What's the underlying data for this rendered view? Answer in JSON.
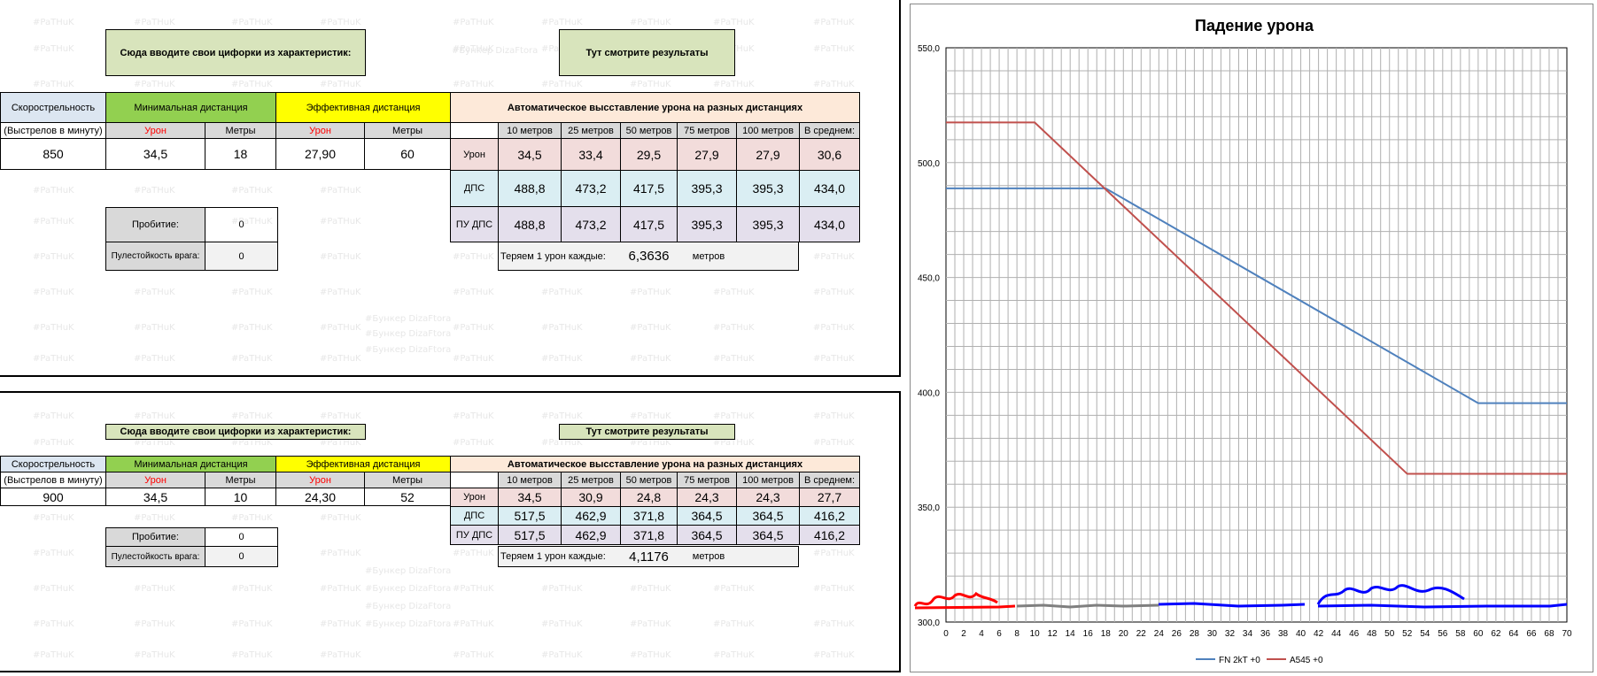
{
  "watermark": "#PaTHuK",
  "watermark2": "#Бункер DizaFtora",
  "sheet1": {
    "input_banner": "Сюда вводите свои цифорки из характеристик:",
    "results_banner": "Тут смотрите результаты",
    "headers": {
      "rof": "Скорострельность",
      "rof_sub": "(Выстрелов в минуту)",
      "min_dist": "Минимальная дистанция",
      "eff_dist": "Эффективная дистанция",
      "auto": "Автоматическое выcставление урона на разных дистанциях",
      "damage": "Урон",
      "meters": "Метры"
    },
    "dist_headers": [
      "10 метров",
      "25 метров",
      "50 метров",
      "75 метров",
      "100 метров",
      "В среднем:"
    ],
    "row_labels": [
      "Урон",
      "ДПС",
      "ПУ ДПС"
    ],
    "rof_value": "850",
    "min_damage": "34,5",
    "min_meters": "18",
    "eff_damage": "27,90",
    "eff_meters": "60",
    "rows": [
      [
        "34,5",
        "33,4",
        "29,5",
        "27,9",
        "27,9",
        "30,6"
      ],
      [
        "488,8",
        "473,2",
        "417,5",
        "395,3",
        "395,3",
        "434,0"
      ],
      [
        "488,8",
        "473,2",
        "417,5",
        "395,3",
        "395,3",
        "434,0"
      ]
    ],
    "penetration_label": "Пробитие:",
    "penetration_value": "0",
    "armor_label": "Пулестойкость врага:",
    "armor_value": "0",
    "lose_label": "Теряем 1 урон каждые:",
    "lose_value": "6,3636",
    "lose_unit": "метров"
  },
  "sheet2": {
    "input_banner": "Сюда вводите свои цифорки из характеристик:",
    "results_banner": "Тут смотрите результаты",
    "headers": {
      "rof": "Скорострельность",
      "rof_sub": "(Выстрелов в минуту)",
      "min_dist": "Минимальная дистанция",
      "eff_dist": "Эффективная дистанция",
      "auto": "Автоматическое выcставление урона на разных дистанциях",
      "damage": "Урон",
      "meters": "Метры"
    },
    "dist_headers": [
      "10 метров",
      "25 метров",
      "50 метров",
      "75 метров",
      "100 метров",
      "В среднем:"
    ],
    "row_labels": [
      "Урон",
      "ДПС",
      "ПУ ДПС"
    ],
    "rof_value": "900",
    "min_damage": "34,5",
    "min_meters": "10",
    "eff_damage": "24,30",
    "eff_meters": "52",
    "rows": [
      [
        "34,5",
        "30,9",
        "24,8",
        "24,3",
        "24,3",
        "27,7"
      ],
      [
        "517,5",
        "462,9",
        "371,8",
        "364,5",
        "364,5",
        "416,2"
      ],
      [
        "517,5",
        "462,9",
        "371,8",
        "364,5",
        "364,5",
        "416,2"
      ]
    ],
    "penetration_label": "Пробитие:",
    "penetration_value": "0",
    "armor_label": "Пулестойкость врага:",
    "armor_value": "0",
    "lose_label": "Теряем 1 урон каждые:",
    "lose_value": "4,1176",
    "lose_unit": "метров"
  },
  "chart_data": {
    "type": "line",
    "title": "Падение урона",
    "xlabel": "",
    "ylabel": "",
    "xlim": [
      0,
      70
    ],
    "ylim": [
      300,
      550
    ],
    "x_ticks": [
      0,
      2,
      4,
      6,
      8,
      10,
      12,
      14,
      16,
      18,
      20,
      22,
      24,
      26,
      28,
      30,
      32,
      34,
      36,
      38,
      40,
      42,
      44,
      46,
      48,
      50,
      52,
      54,
      56,
      58,
      60,
      62,
      64,
      66,
      68,
      70
    ],
    "y_ticks": [
      300,
      350,
      400,
      450,
      500,
      550
    ],
    "y_tick_labels": [
      "300,0",
      "350,0",
      "400,0",
      "450,0",
      "500,0",
      "550,0"
    ],
    "grid": true,
    "legend_position": "bottom",
    "series": [
      {
        "name": "FN 2kT +0",
        "color": "#4f81bd",
        "x": [
          0,
          18,
          60,
          70
        ],
        "y": [
          488.8,
          488.8,
          395.3,
          395.3
        ]
      },
      {
        "name": "A545 +0",
        "color": "#c0504d",
        "x": [
          0,
          10,
          52,
          70
        ],
        "y": [
          517.5,
          517.5,
          364.5,
          364.5
        ]
      }
    ]
  }
}
